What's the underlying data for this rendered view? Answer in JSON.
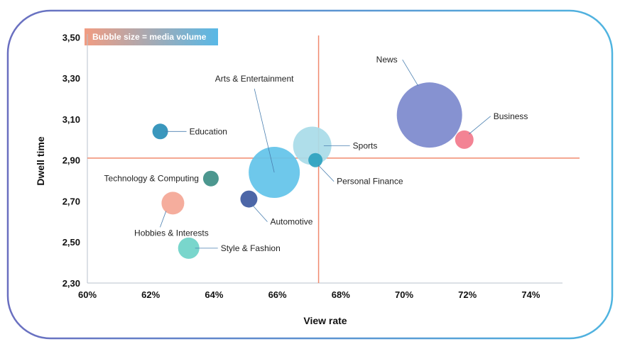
{
  "colors": {
    "frame_start": "#6a6fc0",
    "frame_end": "#4fb4e0",
    "quadrant_line": "#f08a6e",
    "axis": "#b8c2cc",
    "badge_start": "#f19c82",
    "badge_end": "#58b8e6"
  },
  "chart_data": {
    "type": "scatter",
    "subtype": "bubble",
    "legend_note": "Bubble size = media volume",
    "xlabel": "View rate",
    "ylabel": "Dwell time",
    "xlim": [
      60,
      75
    ],
    "ylim": [
      2.3,
      3.55
    ],
    "x_ticks": [
      60,
      62,
      64,
      66,
      68,
      70,
      72,
      74
    ],
    "x_tick_labels": [
      "60%",
      "62%",
      "64%",
      "66%",
      "68%",
      "70%",
      "72%",
      "74%"
    ],
    "y_ticks": [
      2.3,
      2.5,
      2.7,
      2.9,
      3.1,
      3.3,
      3.5
    ],
    "y_tick_labels": [
      "2,30",
      "2,50",
      "2,70",
      "2,90",
      "3,10",
      "3,30",
      "3,50"
    ],
    "grid": false,
    "reference_lines": {
      "x": 67.3,
      "y": 2.91
    },
    "points": [
      {
        "label": "News",
        "x": 70.8,
        "y": 3.12,
        "size": 46,
        "color": "#7d8acd",
        "label_pos": "upper-left"
      },
      {
        "label": "Business",
        "x": 71.9,
        "y": 3.0,
        "size": 13,
        "color": "#f27a8c",
        "label_pos": "upper-right"
      },
      {
        "label": "Sports",
        "x": 67.1,
        "y": 2.97,
        "size": 27,
        "color": "#a9dce8",
        "label_pos": "right"
      },
      {
        "label": "Personal Finance",
        "x": 67.2,
        "y": 2.9,
        "size": 10,
        "color": "#2fa3bf",
        "label_pos": "lower-right"
      },
      {
        "label": "Arts & Entertainment",
        "x": 65.9,
        "y": 2.84,
        "size": 36,
        "color": "#63c4ea",
        "label_pos": "above"
      },
      {
        "label": "Education",
        "x": 62.3,
        "y": 3.04,
        "size": 11,
        "color": "#2b8fb8",
        "label_pos": "right"
      },
      {
        "label": "Technology & Computing",
        "x": 63.9,
        "y": 2.81,
        "size": 11,
        "color": "#3e8f87",
        "label_pos": "left"
      },
      {
        "label": "Automotive",
        "x": 65.1,
        "y": 2.71,
        "size": 12,
        "color": "#3e5aa0",
        "label_pos": "lower-right"
      },
      {
        "label": "Hobbies & Interests",
        "x": 62.7,
        "y": 2.69,
        "size": 16,
        "color": "#f4a796",
        "label_pos": "lower-left"
      },
      {
        "label": "Style & Fashion",
        "x": 63.2,
        "y": 2.47,
        "size": 15,
        "color": "#6fd3c8",
        "label_pos": "right"
      }
    ]
  }
}
